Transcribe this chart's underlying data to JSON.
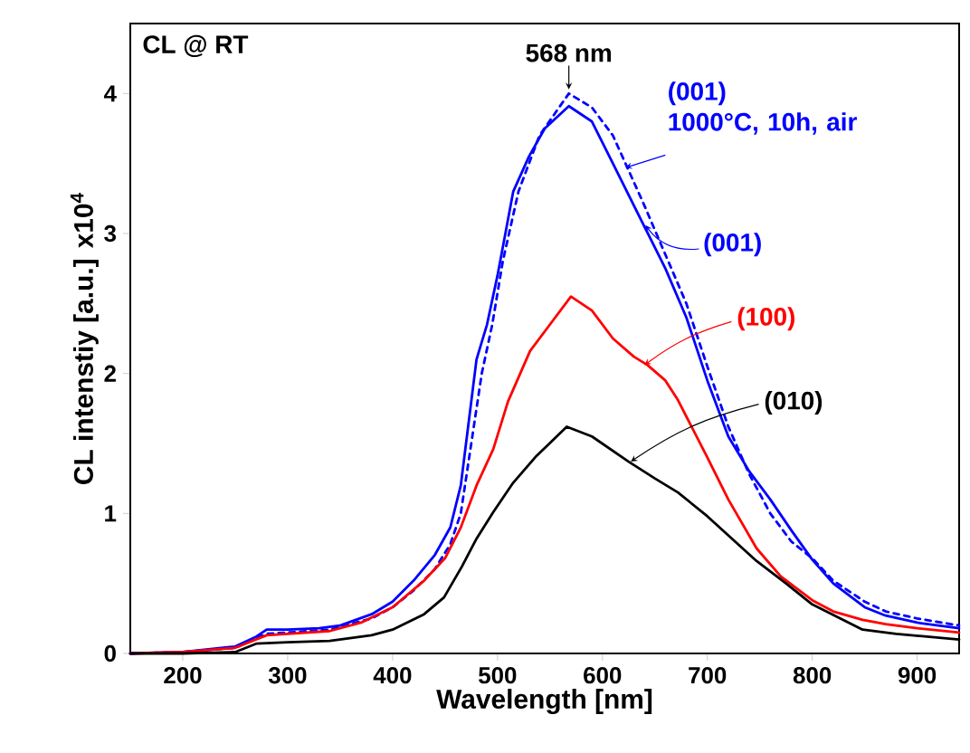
{
  "chart_data": {
    "type": "line",
    "xlabel": "Wavelength [nm]",
    "ylabel": "CL intenstiy [a.u.] x10$^{4}$",
    "xlim": [
      150,
      940
    ],
    "ylim": [
      0,
      4.5
    ],
    "xticks": [
      200,
      300,
      400,
      500,
      600,
      700,
      800,
      900
    ],
    "yticks": [
      0,
      1,
      2,
      3,
      4
    ],
    "annotations": [
      "CL @ RT",
      {
        "text": "568 nm",
        "x": 568,
        "y": 4.0
      }
    ],
    "series": [
      {
        "name": "(001) 1000°C, 10h, air",
        "color": "#0000ff",
        "line_style": "dashed",
        "x": [
          150,
          200,
          250,
          270,
          280,
          300,
          340,
          380,
          400,
          420,
          440,
          455,
          465,
          475,
          485,
          495,
          505,
          520,
          540,
          568,
          590,
          610,
          640,
          660,
          680,
          700,
          720,
          740,
          760,
          780,
          800,
          820,
          850,
          870,
          900,
          940
        ],
        "values": [
          0,
          0.01,
          0.04,
          0.11,
          0.14,
          0.15,
          0.17,
          0.25,
          0.33,
          0.45,
          0.6,
          0.78,
          1.0,
          1.5,
          2.0,
          2.35,
          2.8,
          3.3,
          3.7,
          4.0,
          3.9,
          3.7,
          3.2,
          2.85,
          2.5,
          2.05,
          1.62,
          1.28,
          1.0,
          0.8,
          0.68,
          0.52,
          0.37,
          0.3,
          0.25,
          0.2
        ]
      },
      {
        "name": "(001)",
        "color": "#0000ff",
        "line_style": "solid",
        "x": [
          150,
          200,
          250,
          270,
          280,
          300,
          330,
          350,
          380,
          400,
          420,
          440,
          455,
          465,
          480,
          490,
          500,
          515,
          530,
          545,
          568,
          590,
          610,
          640,
          660,
          680,
          700,
          720,
          740,
          760,
          780,
          800,
          820,
          850,
          870,
          900,
          940
        ],
        "values": [
          0,
          0.01,
          0.05,
          0.12,
          0.17,
          0.17,
          0.18,
          0.2,
          0.28,
          0.37,
          0.52,
          0.7,
          0.9,
          1.2,
          2.1,
          2.35,
          2.7,
          3.3,
          3.55,
          3.75,
          3.91,
          3.8,
          3.5,
          3.05,
          2.75,
          2.4,
          1.95,
          1.55,
          1.3,
          1.1,
          0.88,
          0.67,
          0.5,
          0.33,
          0.27,
          0.22,
          0.18
        ]
      },
      {
        "name": "(100)",
        "color": "#ff0000",
        "line_style": "solid",
        "x": [
          150,
          200,
          250,
          270,
          280,
          300,
          340,
          370,
          400,
          430,
          450,
          465,
          480,
          496,
          510,
          531,
          550,
          570,
          590,
          610,
          630,
          643,
          660,
          672,
          700,
          720,
          747,
          770,
          800,
          820,
          848,
          870,
          900,
          940
        ],
        "values": [
          0,
          0.01,
          0.04,
          0.1,
          0.13,
          0.14,
          0.16,
          0.22,
          0.33,
          0.52,
          0.68,
          0.9,
          1.2,
          1.46,
          1.8,
          2.16,
          2.35,
          2.55,
          2.45,
          2.25,
          2.12,
          2.06,
          1.95,
          1.81,
          1.4,
          1.1,
          0.75,
          0.55,
          0.38,
          0.3,
          0.24,
          0.21,
          0.18,
          0.15
        ]
      },
      {
        "name": "(010)",
        "color": "#000000",
        "line_style": "solid",
        "x": [
          150,
          200,
          250,
          270,
          300,
          340,
          380,
          400,
          430,
          449,
          466,
          480,
          496,
          515,
          537,
          566,
          590,
          625,
          650,
          672,
          700,
          747,
          775,
          800,
          848,
          880,
          940
        ],
        "values": [
          0,
          0,
          0.01,
          0.07,
          0.08,
          0.09,
          0.13,
          0.17,
          0.28,
          0.4,
          0.62,
          0.82,
          1.01,
          1.22,
          1.41,
          1.62,
          1.55,
          1.37,
          1.25,
          1.15,
          0.98,
          0.66,
          0.5,
          0.35,
          0.17,
          0.14,
          0.1
        ]
      }
    ]
  }
}
